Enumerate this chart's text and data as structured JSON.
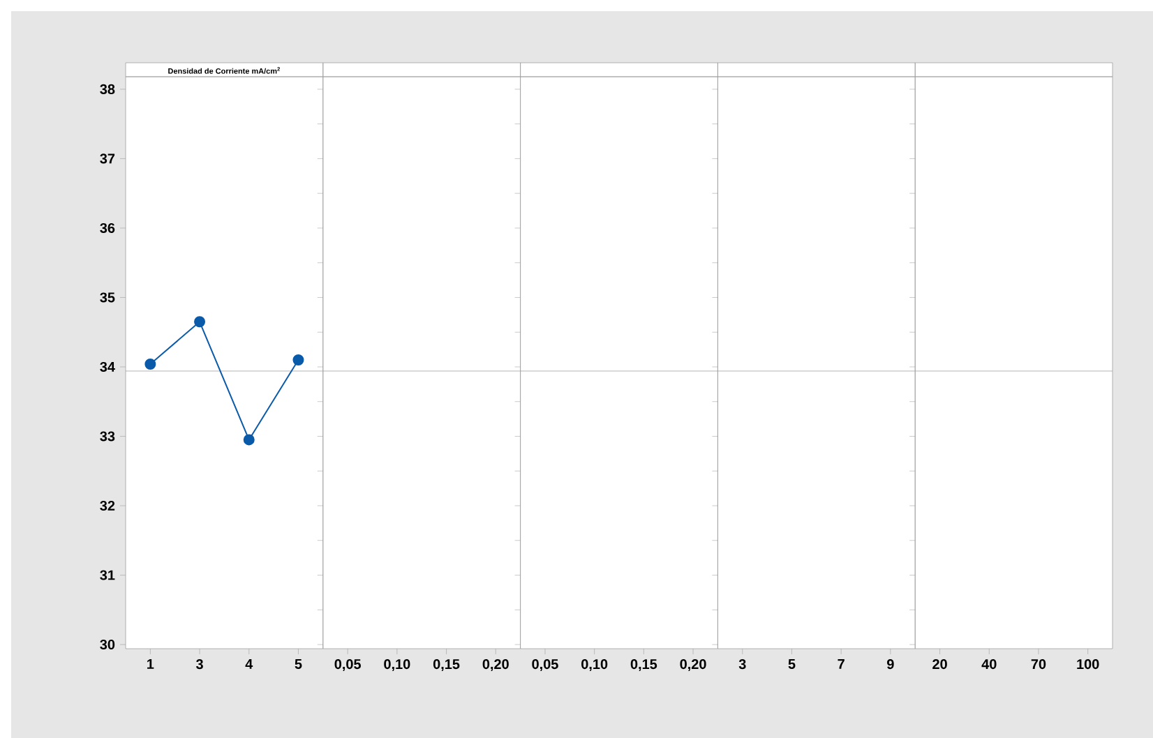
{
  "chart_data": [
    {
      "type": "line",
      "title": "Densidad de Corriente mA/cm$^{2}$",
      "categories": [
        "1",
        "3",
        "4",
        "5"
      ],
      "series": [
        {
          "color": "#0a5aaa",
          "values": [
            34.04,
            34.65,
            32.95,
            34.1
          ]
        }
      ],
      "ylim": [
        29.94,
        38.18
      ],
      "yticks": [
        30,
        31,
        32,
        33,
        34,
        35,
        36,
        37,
        38
      ],
      "marker": "circle",
      "ref_lines": [
        {
          "axis": "y",
          "value": 33.94,
          "color": "#a0a0a0"
        }
      ]
    },
    {
      "type": "line",
      "categories": [
        "0,05",
        "0,10",
        "0,15",
        "0,20"
      ],
      "ylim": [
        29.94,
        38.18
      ],
      "tick_labels": "x",
      "ref_lines": [
        {
          "axis": "y",
          "value": 33.94,
          "color": "#a0a0a0"
        }
      ]
    },
    {
      "type": "line",
      "categories": [
        "0,05",
        "0,10",
        "0,15",
        "0,20"
      ],
      "ylim": [
        29.94,
        38.18
      ],
      "tick_labels": "x",
      "ref_lines": [
        {
          "axis": "y",
          "value": 33.94,
          "color": "#a0a0a0"
        }
      ]
    },
    {
      "type": "line",
      "categories": [
        "3",
        "5",
        "7",
        "9"
      ],
      "ylim": [
        29.94,
        38.18
      ],
      "tick_labels": "x",
      "ref_lines": [
        {
          "axis": "y",
          "value": 33.94,
          "color": "#a0a0a0"
        }
      ]
    },
    {
      "type": "line",
      "categories": [
        "20",
        "40",
        "70",
        "100"
      ],
      "ylim": [
        29.94,
        38.18
      ],
      "tick_labels": "x",
      "ref_lines": [
        {
          "axis": "y",
          "value": 33.94,
          "color": "#a0a0a0"
        }
      ]
    }
  ]
}
